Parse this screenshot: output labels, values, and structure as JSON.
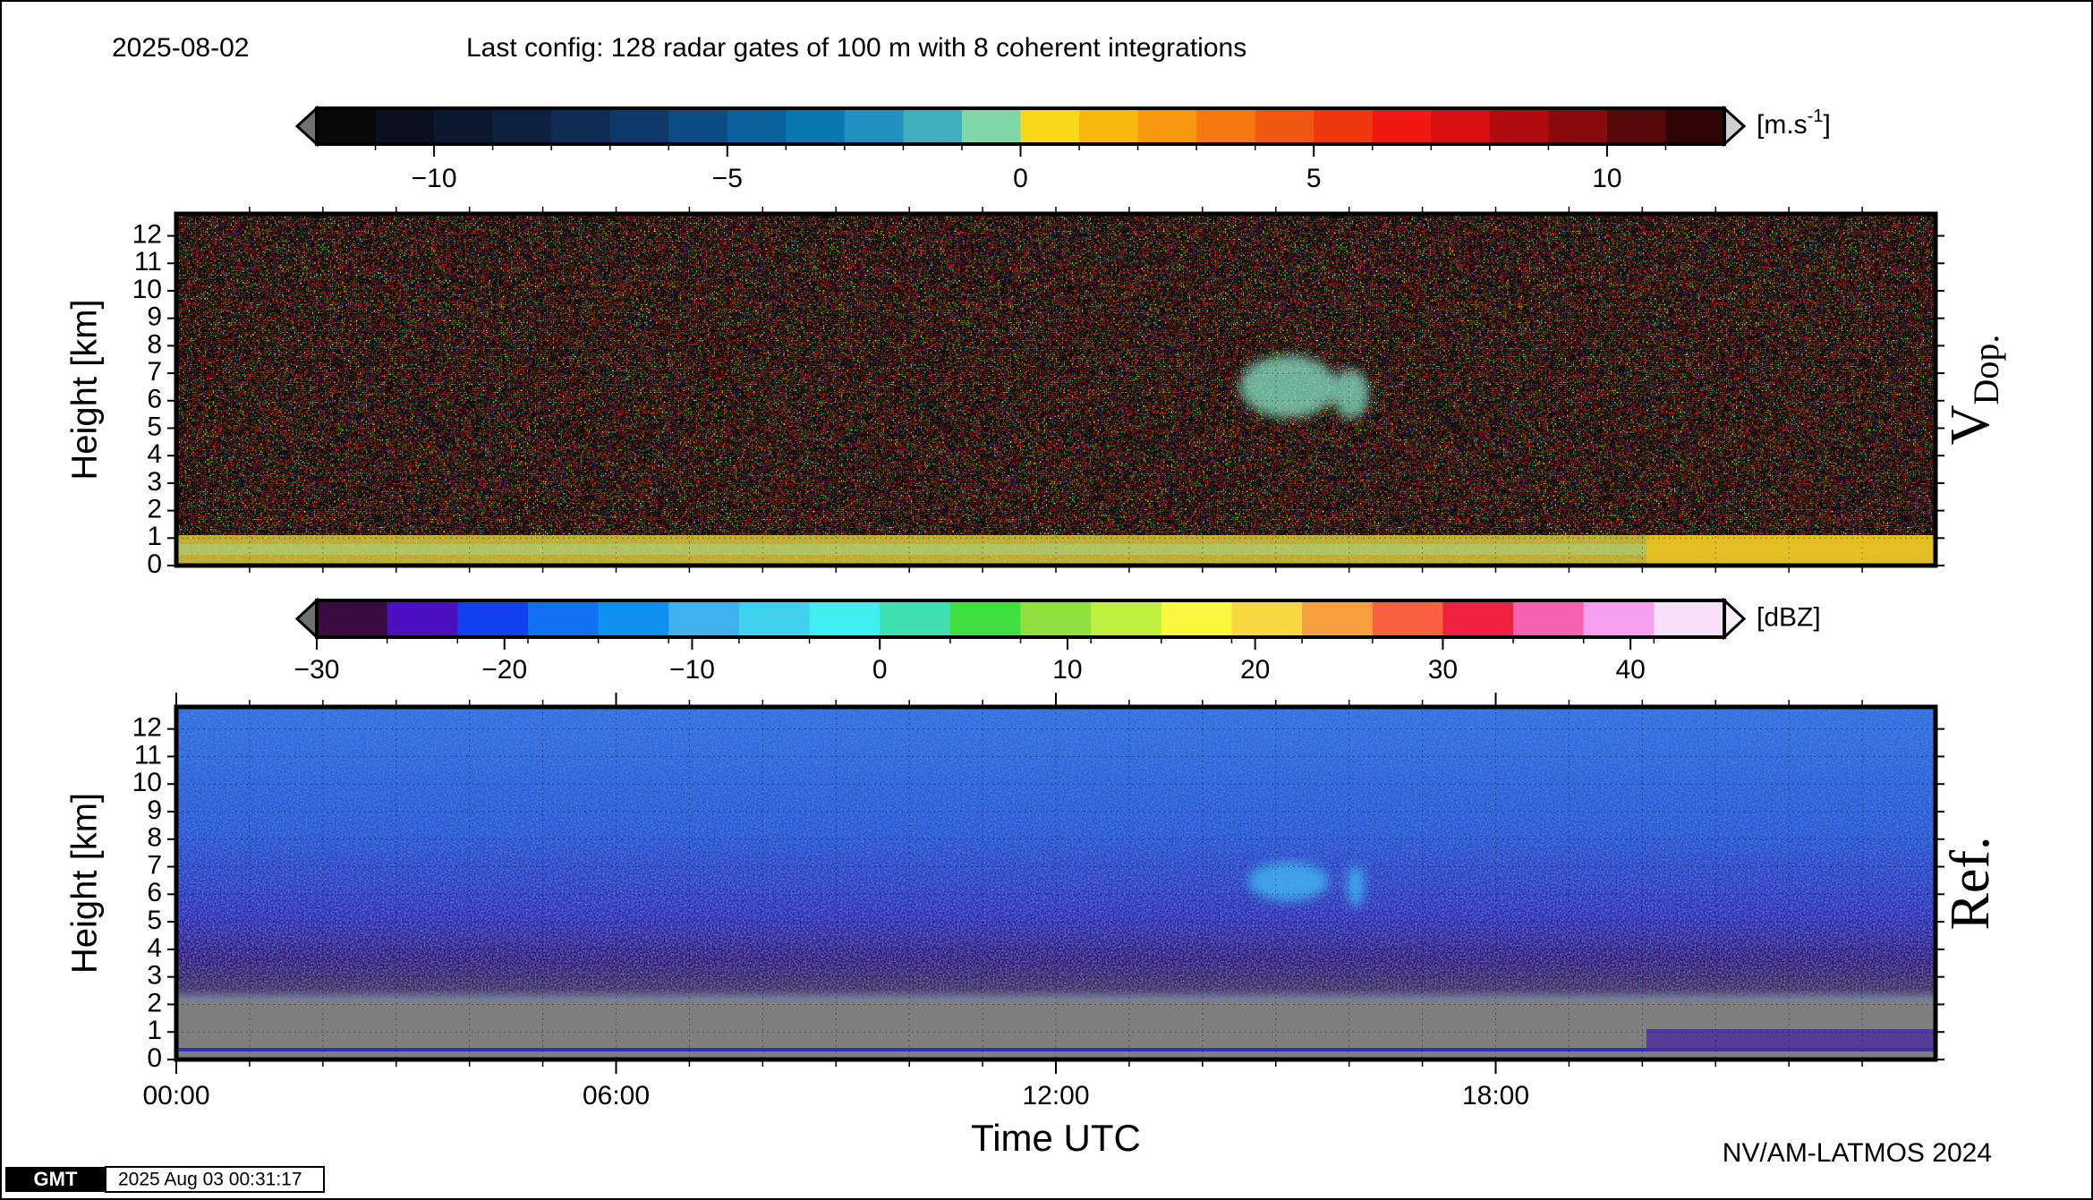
{
  "date": "2025-08-02",
  "title": "Last config: 128 radar gates of 100 m with 8 coherent integrations",
  "chart_data": [
    {
      "type": "heatmap",
      "ylabel": "Height [km]",
      "panel_label": "V",
      "panel_label_sub": "Dop.",
      "xlim": [
        0,
        24
      ],
      "ylim": [
        0,
        12.8
      ],
      "yticks": [
        0,
        1,
        2,
        3,
        4,
        5,
        6,
        7,
        8,
        9,
        10,
        11,
        12
      ],
      "grid": true,
      "colorbar": {
        "unit": "[m.s",
        "unit_sup": "-1",
        "unit_end": "]",
        "lim": [
          -12,
          12
        ],
        "ticks": [
          {
            "value": -10,
            "label": "−10"
          },
          {
            "value": -5,
            "label": "−5"
          },
          0,
          5,
          10
        ],
        "under_color": "#707070",
        "over_color": "#d0d0d0",
        "colors": [
          "#080808",
          "#0a1020",
          "#0c1830",
          "#0e2040",
          "#0f2c55",
          "#0e3a6a",
          "#0c4c82",
          "#0a609a",
          "#0a78b0",
          "#2090c0",
          "#40b0c0",
          "#80d8a8",
          "#f8d818",
          "#f8b810",
          "#f89810",
          "#f87810",
          "#f05810",
          "#f03810",
          "#f01810",
          "#d81010",
          "#b00c10",
          "#880a0c",
          "#580808",
          "#300404"
        ]
      }
    },
    {
      "type": "heatmap",
      "ylabel": "Height [km]",
      "panel_label": "Ref.",
      "xlabel": "Time UTC",
      "xlim": [
        0,
        24
      ],
      "ylim": [
        0,
        12.8
      ],
      "yticks": [
        0,
        1,
        2,
        3,
        4,
        5,
        6,
        7,
        8,
        9,
        10,
        11,
        12
      ],
      "grid": true,
      "xticks": [
        {
          "value": 0,
          "label": "00:00"
        },
        {
          "value": 6,
          "label": "06:00"
        },
        {
          "value": 12,
          "label": "12:00"
        },
        {
          "value": 18,
          "label": "18:00"
        }
      ],
      "colorbar": {
        "unit": "[dBZ]",
        "lim": [
          -30,
          45
        ],
        "ticks": [
          {
            "value": -30,
            "label": "−30"
          },
          {
            "value": -20,
            "label": "−20"
          },
          {
            "value": -10,
            "label": "−10"
          },
          0,
          10,
          20,
          30,
          40
        ],
        "under_color": "#707070",
        "over_color": "#f8f0f8",
        "colors": [
          "#3a0a40",
          "#4a10c0",
          "#1040f0",
          "#1070f0",
          "#1090f0",
          "#40b0f0",
          "#40d0f0",
          "#40f0f0",
          "#40e0b0",
          "#40e040",
          "#90e040",
          "#c0f040",
          "#f8f840",
          "#f8d840",
          "#f8a040",
          "#f86040",
          "#f02040",
          "#f860b0",
          "#f8a0f0",
          "#f8e0f8"
        ]
      }
    }
  ],
  "footer": "NV/AM-LATMOS 2024",
  "stamp": {
    "logo": "GMT",
    "timestamp": "2025 Aug 03 00:31:17"
  }
}
